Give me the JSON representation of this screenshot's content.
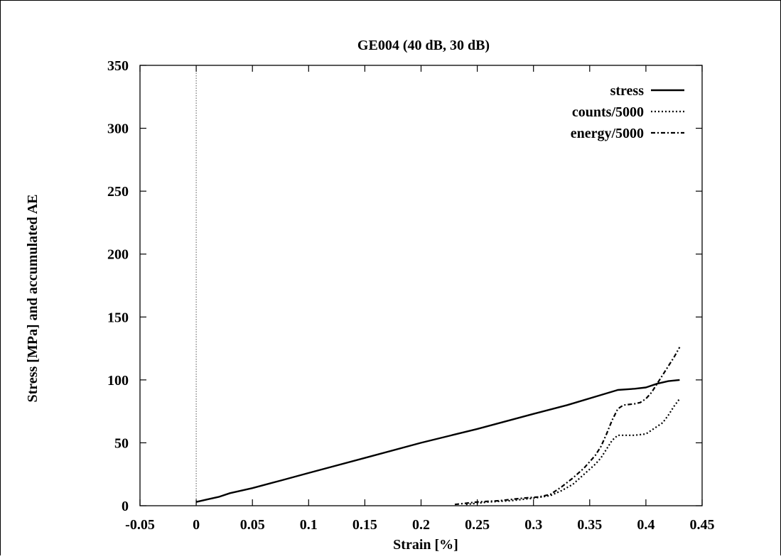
{
  "chart_data": {
    "type": "line",
    "title": "GE004 (40 dB, 30 dB)",
    "xlabel": "Strain [%]",
    "ylabel": "Stress [MPa] and accumulated AE",
    "xlim": [
      -0.05,
      0.45
    ],
    "ylim": [
      0,
      350
    ],
    "xticks": [
      "-0.05",
      "0",
      "0.05",
      "0.1",
      "0.15",
      "0.2",
      "0.25",
      "0.3",
      "0.35",
      "0.4",
      "0.45"
    ],
    "yticks": [
      "0",
      "50",
      "100",
      "150",
      "200",
      "250",
      "300",
      "350"
    ],
    "grid": false,
    "legend_position": "top-right",
    "zero_line_x": 0,
    "series": [
      {
        "name": "stress",
        "style": "solid",
        "x": [
          0,
          0.01,
          0.02,
          0.03,
          0.05,
          0.075,
          0.1,
          0.15,
          0.2,
          0.25,
          0.3,
          0.33,
          0.36,
          0.375,
          0.39,
          0.4,
          0.41,
          0.42,
          0.43
        ],
        "y": [
          3,
          5,
          7,
          10,
          14,
          20,
          26,
          38,
          50,
          61,
          73,
          80,
          88,
          92,
          93,
          94,
          97,
          99,
          100
        ]
      },
      {
        "name": "counts/5000",
        "style": "dotted",
        "x": [
          0.24,
          0.26,
          0.28,
          0.3,
          0.315,
          0.325,
          0.335,
          0.345,
          0.355,
          0.36,
          0.365,
          0.37,
          0.375,
          0.38,
          0.39,
          0.4,
          0.405,
          0.41,
          0.415,
          0.42,
          0.425,
          0.43
        ],
        "y": [
          1,
          3,
          4,
          6,
          8,
          12,
          17,
          25,
          33,
          38,
          45,
          52,
          56,
          56,
          56,
          57,
          60,
          63,
          66,
          72,
          79,
          85
        ]
      },
      {
        "name": "energy/5000",
        "style": "dashdot",
        "x": [
          0.23,
          0.25,
          0.27,
          0.29,
          0.305,
          0.315,
          0.325,
          0.335,
          0.345,
          0.355,
          0.36,
          0.365,
          0.37,
          0.375,
          0.38,
          0.39,
          0.395,
          0.4,
          0.405,
          0.41,
          0.415,
          0.42,
          0.425,
          0.43
        ],
        "y": [
          1,
          3,
          4,
          6,
          7,
          9,
          15,
          22,
          30,
          40,
          47,
          57,
          68,
          77,
          80,
          81,
          82,
          85,
          90,
          97,
          104,
          111,
          118,
          126
        ]
      }
    ]
  }
}
